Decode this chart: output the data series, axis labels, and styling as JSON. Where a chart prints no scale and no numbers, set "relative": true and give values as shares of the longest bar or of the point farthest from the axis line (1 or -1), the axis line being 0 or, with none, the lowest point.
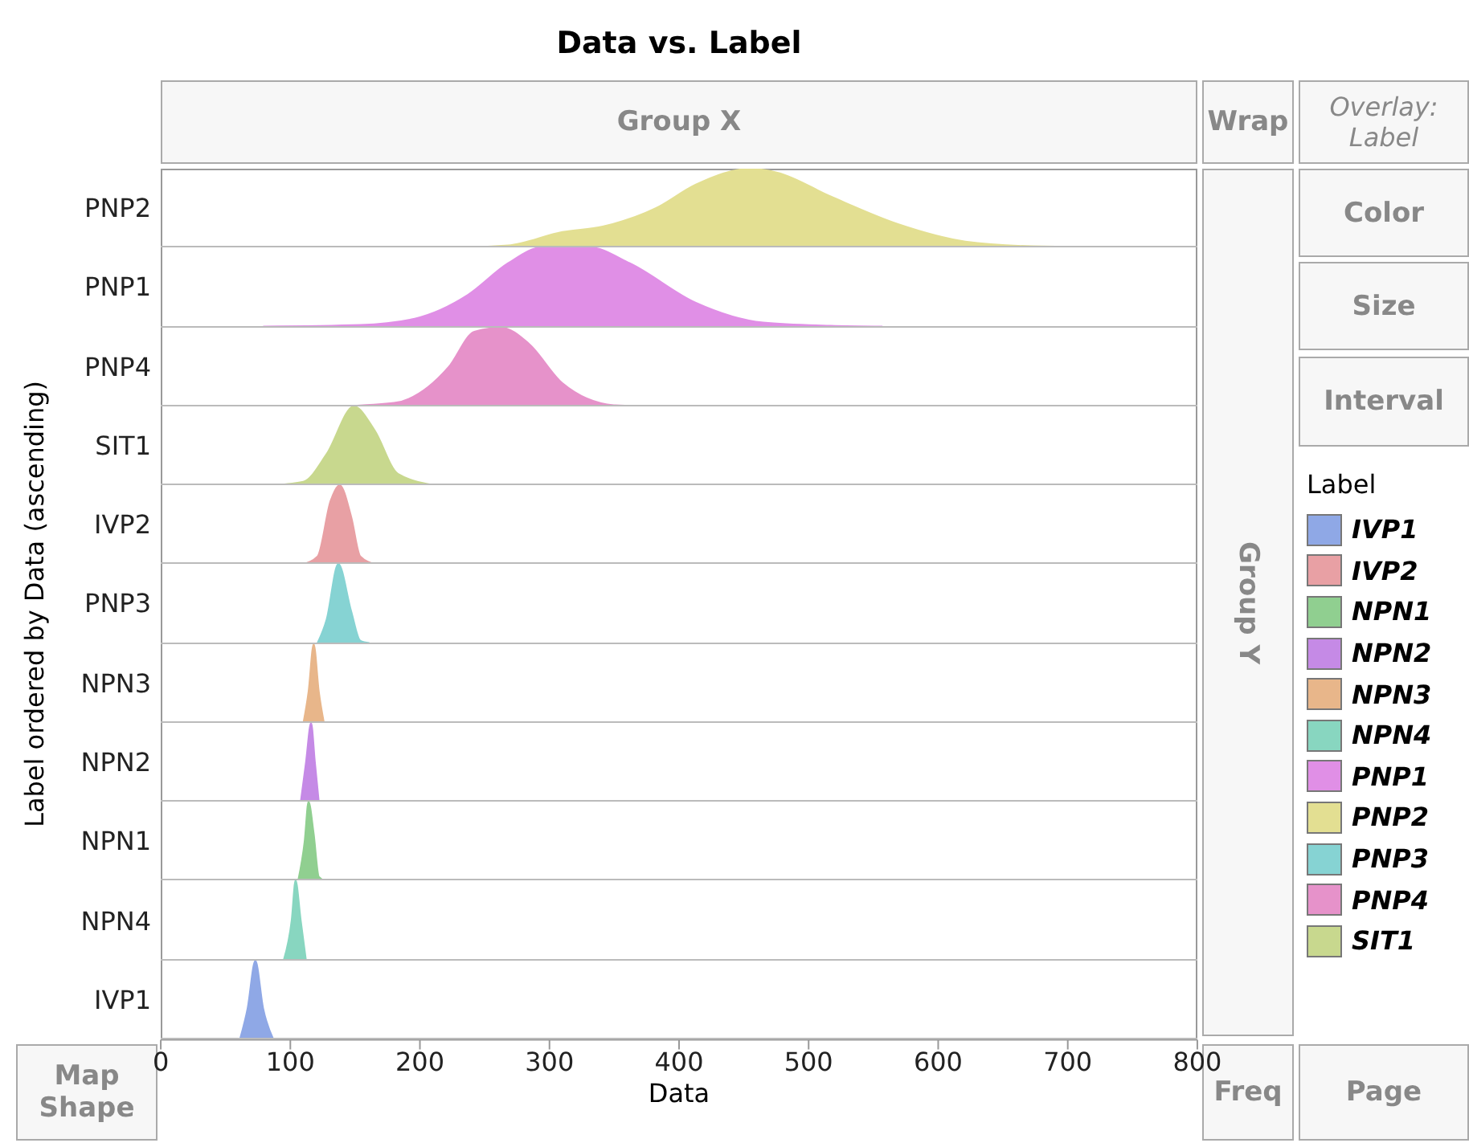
{
  "chart_data": [
    {
      "type": "area",
      "title": "Data vs. Label",
      "ylabel": "Label ordered by Data (ascending)",
      "legend_title": "Label",
      "legend": "right",
      "relative": true,
      "xlim": [
        0,
        800
      ],
      "xticks": [
        0,
        100,
        200,
        300,
        400,
        500,
        600,
        700,
        800
      ],
      "tick_labels": false,
      "annotations": [
        "Group X",
        "Wrap",
        "Overlay: Label",
        "Color",
        "Size",
        "Interval",
        "Group Y",
        "Map Shape",
        "Freq",
        "Page"
      ],
      "series": [
        {
          "name": "PNP2",
          "color": "#e3df92",
          "x": [
            78,
            222,
            268,
            310,
            341,
            382,
            413,
            455,
            476,
            517,
            569,
            621,
            673,
            769
          ],
          "values": [
            0,
            0,
            0.03,
            0.2,
            0.27,
            0.5,
            0.8,
            1,
            0.95,
            0.65,
            0.3,
            0.08,
            0.02,
            0
          ]
        }
      ]
    },
    {
      "type": "area",
      "legend": "right",
      "relative": true,
      "xlim": [
        0,
        800
      ],
      "xticks": [
        0,
        100,
        200,
        300,
        400,
        500,
        600,
        700,
        800
      ],
      "tick_labels": false,
      "series": [
        {
          "name": "PNP1",
          "color": "#e08fe6",
          "x": [
            79,
            154,
            196,
            237,
            268,
            294,
            331,
            362,
            413,
            465,
            517,
            557
          ],
          "values": [
            0,
            0.02,
            0.1,
            0.4,
            0.8,
            1,
            1,
            0.8,
            0.3,
            0.05,
            0.01,
            0
          ]
        }
      ]
    },
    {
      "type": "area",
      "legend": "right",
      "relative": true,
      "xlim": [
        0,
        800
      ],
      "xticks": [
        0,
        100,
        200,
        300,
        400,
        500,
        600,
        700,
        800
      ],
      "tick_labels": false,
      "series": [
        {
          "name": "PNP4",
          "color": "#e692ca",
          "x": [
            128,
            180,
            222,
            242,
            263,
            284,
            310,
            351,
            390
          ],
          "values": [
            0,
            0.05,
            0.5,
            0.95,
            1,
            0.8,
            0.3,
            0.02,
            0
          ]
        }
      ]
    },
    {
      "type": "area",
      "legend": "right",
      "relative": true,
      "xlim": [
        0,
        800
      ],
      "xticks": [
        0,
        100,
        200,
        300,
        400,
        500,
        600,
        700,
        800
      ],
      "tick_labels": false,
      "series": [
        {
          "name": "SIT1",
          "color": "#c8d88e",
          "x": [
            81,
            110,
            128,
            149,
            165,
            183,
            214
          ],
          "values": [
            0,
            0.05,
            0.4,
            1,
            0.7,
            0.15,
            0
          ]
        }
      ]
    },
    {
      "type": "area",
      "legend": "right",
      "relative": true,
      "xlim": [
        0,
        800
      ],
      "xticks": [
        0,
        100,
        200,
        300,
        400,
        500,
        600,
        700,
        800
      ],
      "tick_labels": false,
      "series": [
        {
          "name": "IVP2",
          "color": "#e8a0a4",
          "x": [
            109,
            121,
            131,
            138,
            147,
            154,
            166
          ],
          "values": [
            0,
            0.1,
            0.8,
            1,
            0.6,
            0.1,
            0
          ]
        }
      ]
    },
    {
      "type": "area",
      "legend": "right",
      "relative": true,
      "xlim": [
        0,
        800
      ],
      "xticks": [
        0,
        100,
        200,
        300,
        400,
        500,
        600,
        700,
        800
      ],
      "tick_labels": false,
      "series": [
        {
          "name": "PNP3",
          "color": "#86d3d3",
          "x": [
            121,
            128,
            137,
            147,
            154,
            161
          ],
          "values": [
            0,
            0.3,
            1,
            0.4,
            0.03,
            0
          ]
        }
      ]
    },
    {
      "type": "area",
      "legend": "right",
      "relative": true,
      "xlim": [
        0,
        800
      ],
      "xticks": [
        0,
        100,
        200,
        300,
        400,
        500,
        600,
        700,
        800
      ],
      "tick_labels": false,
      "series": [
        {
          "name": "NPN3",
          "color": "#e8b68a",
          "x": [
            110,
            114,
            118,
            122,
            126
          ],
          "values": [
            0,
            0.4,
            1,
            0.4,
            0
          ]
        }
      ]
    },
    {
      "type": "area",
      "legend": "right",
      "relative": true,
      "xlim": [
        0,
        800
      ],
      "xticks": [
        0,
        100,
        200,
        300,
        400,
        500,
        600,
        700,
        800
      ],
      "tick_labels": false,
      "series": [
        {
          "name": "NPN2",
          "color": "#c58ae6",
          "x": [
            108,
            112,
            116,
            119,
            122
          ],
          "values": [
            0,
            0.5,
            1,
            0.5,
            0
          ]
        }
      ]
    },
    {
      "type": "area",
      "legend": "right",
      "relative": true,
      "xlim": [
        0,
        800
      ],
      "xticks": [
        0,
        100,
        200,
        300,
        400,
        500,
        600,
        700,
        800
      ],
      "tick_labels": false,
      "series": [
        {
          "name": "NPN1",
          "color": "#90cf90",
          "x": [
            106,
            111,
            114,
            118,
            122,
            127
          ],
          "values": [
            0,
            0.5,
            1,
            0.6,
            0.05,
            0
          ]
        }
      ]
    },
    {
      "type": "area",
      "legend": "right",
      "relative": true,
      "xlim": [
        0,
        800
      ],
      "xticks": [
        0,
        100,
        200,
        300,
        400,
        500,
        600,
        700,
        800
      ],
      "tick_labels": false,
      "series": [
        {
          "name": "NPN4",
          "color": "#88d6c0",
          "x": [
            95,
            101,
            104,
            108,
            112
          ],
          "values": [
            0,
            0.5,
            1,
            0.5,
            0
          ]
        }
      ]
    },
    {
      "type": "area",
      "legend": "right",
      "relative": true,
      "xlim": [
        0,
        800
      ],
      "xticks": [
        0,
        100,
        200,
        300,
        400,
        500,
        600,
        700,
        800
      ],
      "tick_labels": "x",
      "xlabel": "Data",
      "series": [
        {
          "name": "IVP1",
          "color": "#8fa8e6",
          "x": [
            61,
            67,
            73,
            79,
            87
          ],
          "values": [
            0,
            0.4,
            1,
            0.4,
            0
          ]
        }
      ]
    }
  ]
}
